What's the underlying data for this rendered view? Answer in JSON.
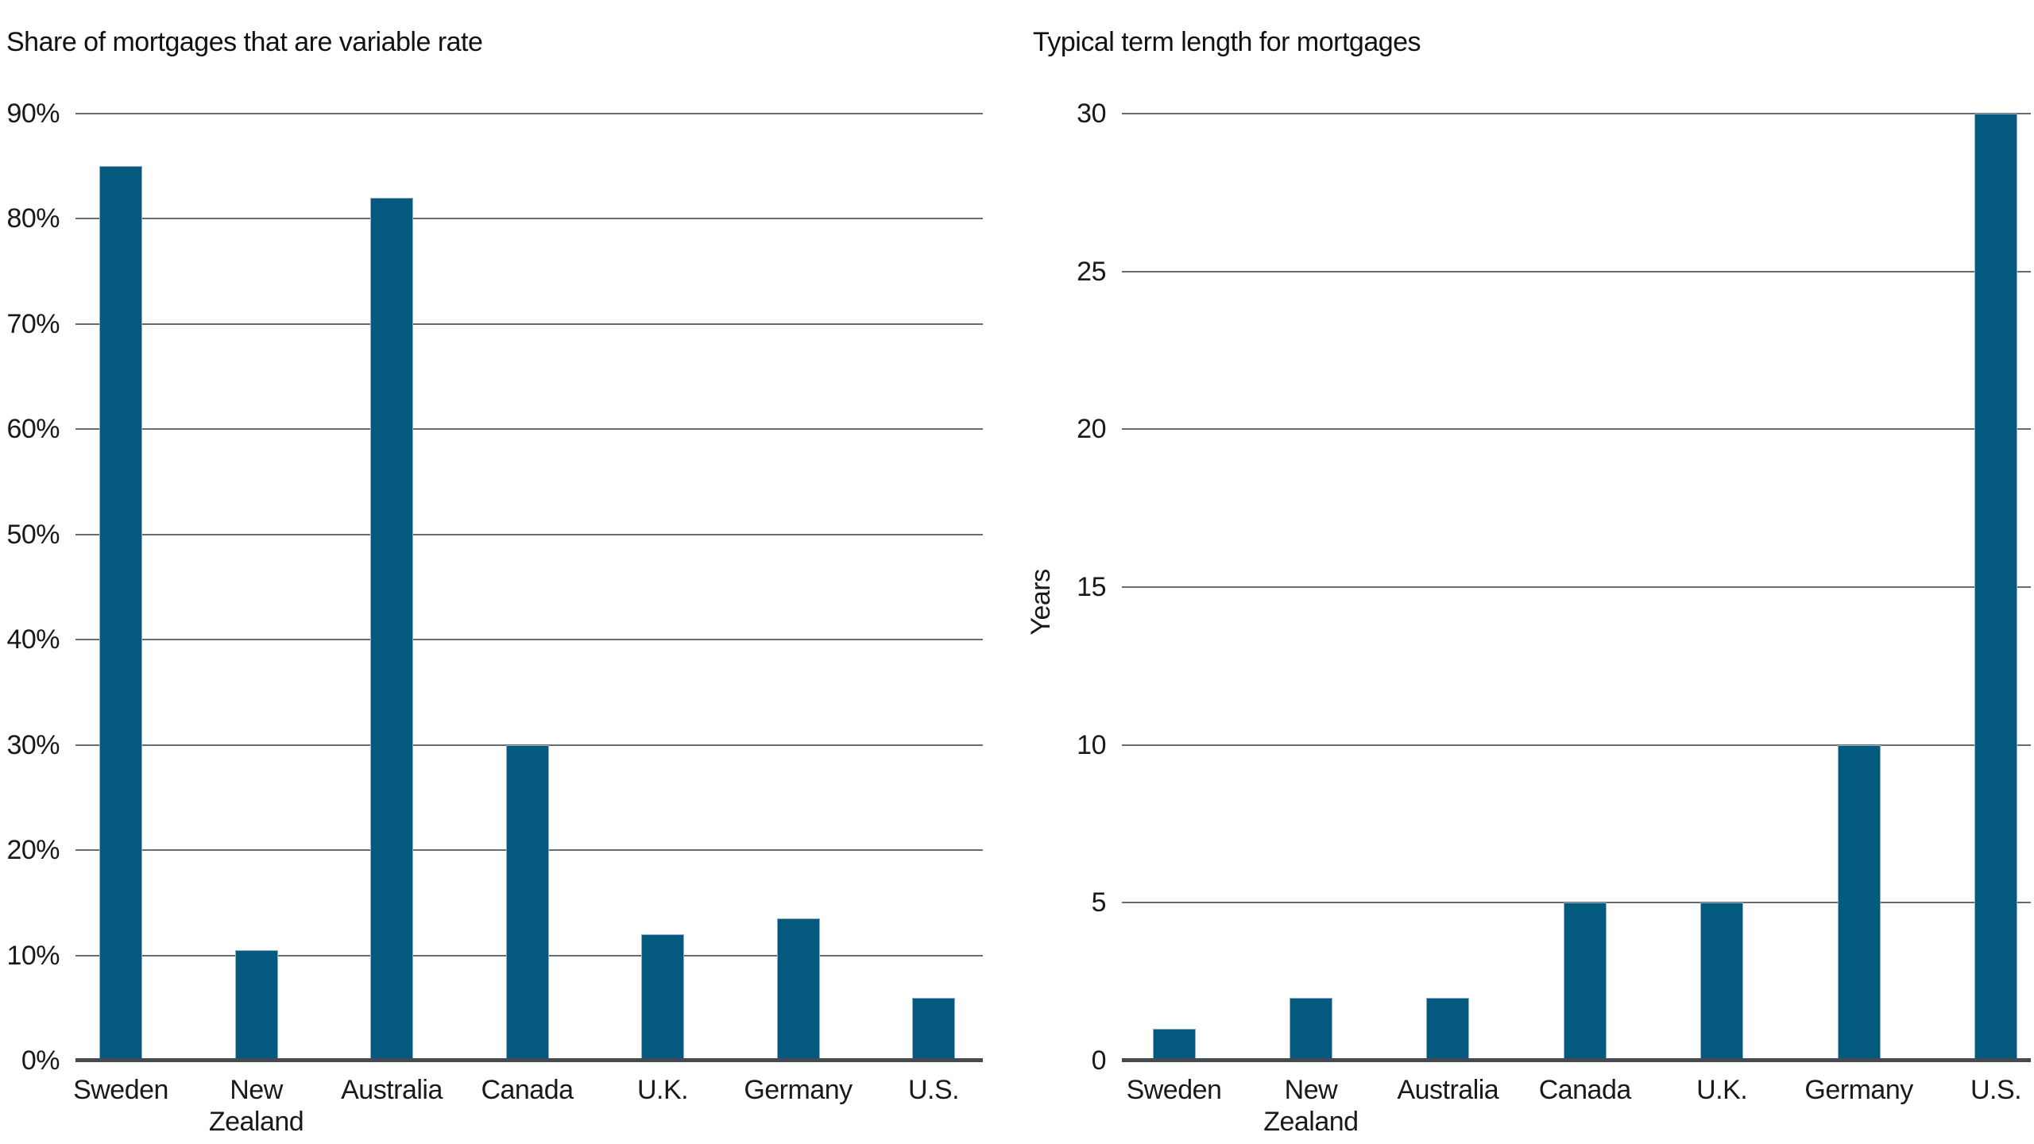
{
  "colors": {
    "bar_fill": "#04597f",
    "bar_edge": "#8fb0c4",
    "gridline": "#666c71",
    "axis_line": "#454b51",
    "text": "#191919",
    "background": "#ffffff"
  },
  "chart_data": [
    {
      "type": "bar",
      "title": "Share of mortgages that are variable rate",
      "categories": [
        "Sweden",
        "New\nZealand",
        "Australia",
        "Canada",
        "U.K.",
        "Germany",
        "U.S."
      ],
      "values": [
        85,
        10.5,
        82,
        30,
        12,
        13.5,
        6
      ],
      "xlabel": "",
      "ylabel": "",
      "ylim": [
        0,
        90
      ],
      "ytick_step": 10,
      "ytick_suffix": "%",
      "grid": true,
      "legend": "none"
    },
    {
      "type": "bar",
      "title": "Typical term length for mortgages",
      "categories": [
        "Sweden",
        "New\nZealand",
        "Australia",
        "Canada",
        "U.K.",
        "Germany",
        "U.S."
      ],
      "values": [
        1,
        2,
        2,
        5,
        5,
        10,
        30
      ],
      "xlabel": "",
      "ylabel": "Years",
      "ylim": [
        0,
        30
      ],
      "ytick_step": 5,
      "ytick_suffix": "",
      "grid": true,
      "legend": "none"
    }
  ]
}
